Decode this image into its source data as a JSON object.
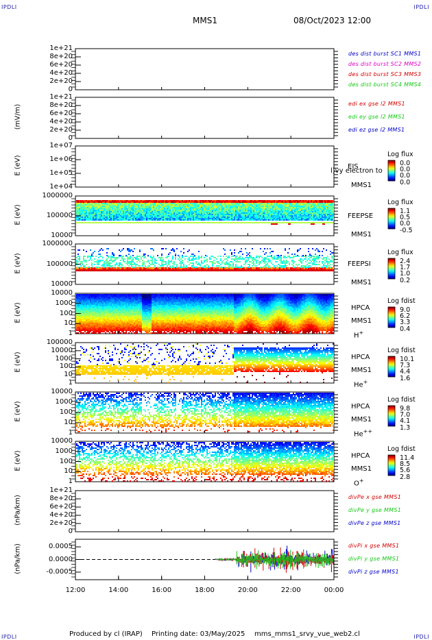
{
  "header": {
    "corner_label": "IPDLI",
    "title": "MMS1",
    "datetime": "08/Oct/2023 12:00"
  },
  "footer": {
    "produced_by": "Produced by cl (IRAP)",
    "printing_date": "Printing date: 03/May/2025",
    "filename": "mms_mms1_srvy_vue_web2.cl"
  },
  "x_axis": {
    "ticks": [
      "12:00",
      "14:00",
      "16:00",
      "18:00",
      "20:00",
      "22:00",
      "00:00"
    ],
    "hours": [
      12,
      14,
      16,
      18,
      20,
      22,
      24
    ]
  },
  "colors": {
    "red": "#d40000",
    "magenta": "#e000c8",
    "green": "#14c814",
    "blue": "#0000c8",
    "darkblue": "#000090"
  },
  "chart_data": [
    {
      "type": "line",
      "panel": "des-dist-burst",
      "ylabel": "",
      "ticks": [
        "1e+21",
        "8e+20",
        "6e+20",
        "4e+20",
        "2e+20",
        "0"
      ],
      "tick_values": [
        1e+21,
        8e+20,
        6e+20,
        4e+20,
        2e+20,
        0
      ],
      "ylim": [
        0,
        1e+21
      ],
      "series": [
        {
          "name": "des dist burst SC1 MMS1",
          "color": "#0000c8",
          "values": []
        },
        {
          "name": "des dist burst SC2 MMS2",
          "color": "#e000c8",
          "values": []
        },
        {
          "name": "des dist burst SC3 MMS3",
          "color": "#d40000",
          "values": []
        },
        {
          "name": "des dist burst SC4 MMS4",
          "color": "#14c814",
          "values": []
        }
      ]
    },
    {
      "type": "line",
      "panel": "edi-e-field",
      "ylabel": "(mV/m)",
      "ticks": [
        "1e+21",
        "8e+20",
        "6e+20",
        "4e+20",
        "2e+20",
        "0"
      ],
      "tick_values": [
        1e+21,
        8e+20,
        6e+20,
        4e+20,
        2e+20,
        0
      ],
      "ylim": [
        0,
        1e+21
      ],
      "series": [
        {
          "name": "edi ex gse l2 MMS1",
          "color": "#d40000",
          "values": []
        },
        {
          "name": "edi ey gse l2 MMS1",
          "color": "#14c814",
          "values": []
        },
        {
          "name": "edi ez gse l2 MMS1",
          "color": "#0000c8",
          "values": []
        }
      ]
    },
    {
      "type": "heatmap",
      "panel": "eis",
      "ylabel": "E (eV)",
      "ticks": [
        "1e+07",
        "1e+06",
        "1e+05",
        "1e+04"
      ],
      "ylim": [
        10000.0,
        10000000.0
      ],
      "side_labels": [
        "EIS",
        "MMS1"
      ],
      "overlay_text": "l)vy electron to",
      "colorbar": {
        "title": "Log flux",
        "values": [
          "0.0",
          "0.0",
          "0.0",
          "0.0"
        ]
      }
    },
    {
      "type": "heatmap",
      "panel": "feeps-electron",
      "ylabel": "E (eV)",
      "ticks": [
        "1000000",
        "100000",
        "10000"
      ],
      "ylim": [
        10000.0,
        1000000.0
      ],
      "side_labels": [
        "FEEPSE",
        "MMS1"
      ],
      "colorbar": {
        "title": "Log flux",
        "values": [
          "1.1",
          "0.5",
          "0.0",
          "-0.5"
        ]
      }
    },
    {
      "type": "heatmap",
      "panel": "feeps-ion",
      "ylabel": "E (eV)",
      "ticks": [
        "1000000",
        "100000",
        "10000"
      ],
      "ylim": [
        10000.0,
        1000000.0
      ],
      "side_labels": [
        "FEEPSI",
        "MMS1"
      ],
      "colorbar": {
        "title": "Log flux",
        "values": [
          "2.4",
          "1.7",
          "1.0",
          "0.2"
        ]
      }
    },
    {
      "type": "heatmap",
      "panel": "hpca-h",
      "ylabel": "E (eV)",
      "ticks": [
        "10000",
        "1000",
        "100",
        "10",
        "1"
      ],
      "ylim": [
        1,
        10000.0
      ],
      "side_labels": [
        "HPCA",
        "MMS1"
      ],
      "species": "H",
      "species_charge": "+",
      "colorbar": {
        "title": "Log fdist",
        "values": [
          "9.0",
          "6.2",
          "3.3",
          "0.4"
        ]
      }
    },
    {
      "type": "heatmap",
      "panel": "hpca-he",
      "ylabel": "E (eV)",
      "ticks": [
        "100000",
        "10000",
        "1000",
        "100",
        "10",
        "1"
      ],
      "ylim": [
        1,
        100000.0
      ],
      "side_labels": [
        "HPCA",
        "MMS1"
      ],
      "species": "He",
      "species_charge": "+",
      "colorbar": {
        "title": "Log fdist",
        "values": [
          "10.1",
          "7.3",
          "4.4",
          "1.6"
        ]
      }
    },
    {
      "type": "heatmap",
      "panel": "hpca-he2",
      "ylabel": "E (eV)",
      "ticks": [
        "10000",
        "1000",
        "100",
        "10",
        "1"
      ],
      "ylim": [
        1,
        10000.0
      ],
      "side_labels": [
        "HPCA",
        "MMS1"
      ],
      "species": "He",
      "species_charge": "++",
      "colorbar": {
        "title": "Log fdist",
        "values": [
          "9.8",
          "7.0",
          "4.1",
          "1.3"
        ]
      }
    },
    {
      "type": "heatmap",
      "panel": "hpca-o",
      "ylabel": "E (eV)",
      "ticks": [
        "10000",
        "1000",
        "100",
        "10",
        "1"
      ],
      "ylim": [
        1,
        10000.0
      ],
      "side_labels": [
        "HPCA",
        "MMS1"
      ],
      "species": "O",
      "species_charge": "+",
      "colorbar": {
        "title": "Log fdist",
        "values": [
          "11.4",
          "8.5",
          "5.6",
          "2.8"
        ]
      }
    },
    {
      "type": "line",
      "panel": "divpe",
      "ylabel": "(nPa/km)",
      "ticks": [
        "1e+21",
        "8e+20",
        "6e+20",
        "4e+20",
        "2e+20",
        "0"
      ],
      "tick_values": [
        1e+21,
        8e+20,
        6e+20,
        4e+20,
        2e+20,
        0
      ],
      "ylim": [
        0,
        1e+21
      ],
      "series": [
        {
          "name": "divPe x gse MMS1",
          "color": "#d40000",
          "values": []
        },
        {
          "name": "divPe y gse MMS1",
          "color": "#14c814",
          "values": []
        },
        {
          "name": "divPe z gse MMS1",
          "color": "#0000c8",
          "values": []
        }
      ]
    },
    {
      "type": "line",
      "panel": "divpi",
      "ylabel": "(nPa/km)",
      "ticks": [
        "0.0005",
        "0.0000",
        "-0.0005"
      ],
      "tick_values": [
        0.0005,
        0,
        -0.0005
      ],
      "ylim": [
        -0.0008,
        0.0008
      ],
      "data_start_hour": 18.5,
      "series": [
        {
          "name": "divPi x gse MMS1",
          "color": "#d40000"
        },
        {
          "name": "divPi y gse MMS1",
          "color": "#14c814"
        },
        {
          "name": "divPi z gse MMS1",
          "color": "#0000c8"
        }
      ]
    }
  ]
}
